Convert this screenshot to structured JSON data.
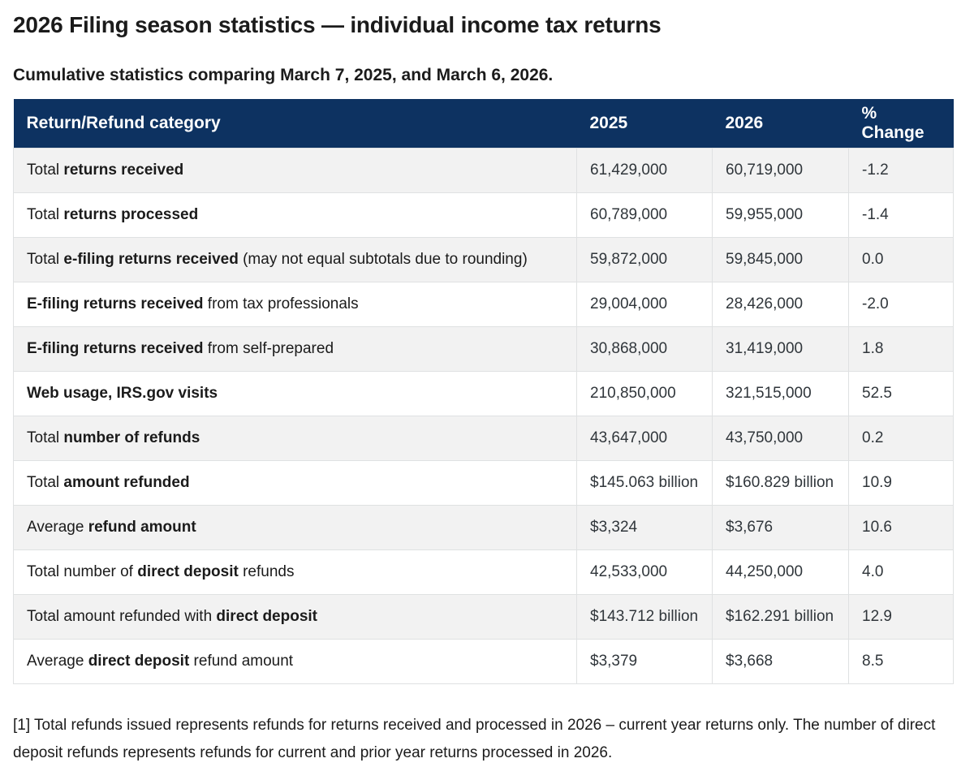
{
  "page": {
    "title": "2026 Filing season statistics — individual income tax returns",
    "subtitle": "Cumulative statistics comparing March 7, 2025, and March 6, 2026.",
    "footnote": "[1] Total refunds issued represents refunds for returns received and processed in 2026 – current year returns only. The number of direct deposit refunds represents refunds for current and prior year returns processed in 2026."
  },
  "colors": {
    "header_background": "#0d3261",
    "header_text": "#ffffff",
    "stripe_row": "#f2f2f2",
    "cell_border": "#dfe1e2",
    "body_text": "#1b1b1b"
  },
  "table": {
    "columns": [
      "Return/Refund category",
      "2025",
      "2026",
      "% Change"
    ],
    "rows": [
      {
        "category": [
          {
            "text": "Total ",
            "bold": false
          },
          {
            "text": "returns received",
            "bold": true
          }
        ],
        "y2025": "61,429,000",
        "y2026": "60,719,000",
        "change": "-1.2"
      },
      {
        "category": [
          {
            "text": "Total ",
            "bold": false
          },
          {
            "text": "returns processed",
            "bold": true
          }
        ],
        "y2025": "60,789,000",
        "y2026": "59,955,000",
        "change": "-1.4"
      },
      {
        "category": [
          {
            "text": "Total ",
            "bold": false
          },
          {
            "text": "e-filing returns received",
            "bold": true
          },
          {
            "text": " (may not equal subtotals due to rounding)",
            "bold": false
          }
        ],
        "y2025": "59,872,000",
        "y2026": "59,845,000",
        "change": "0.0"
      },
      {
        "category": [
          {
            "text": "E-filing returns received",
            "bold": true
          },
          {
            "text": " from tax professionals",
            "bold": false
          }
        ],
        "y2025": "29,004,000",
        "y2026": "28,426,000",
        "change": "-2.0"
      },
      {
        "category": [
          {
            "text": "E-filing returns received",
            "bold": true
          },
          {
            "text": " from self-prepared",
            "bold": false
          }
        ],
        "y2025": "30,868,000",
        "y2026": "31,419,000",
        "change": "1.8"
      },
      {
        "category": [
          {
            "text": "Web usage, IRS.gov visits",
            "bold": true
          }
        ],
        "y2025": "210,850,000",
        "y2026": "321,515,000",
        "change": "52.5"
      },
      {
        "category": [
          {
            "text": "Total ",
            "bold": false
          },
          {
            "text": "number of refunds",
            "bold": true
          }
        ],
        "y2025": "43,647,000",
        "y2026": "43,750,000",
        "change": "0.2"
      },
      {
        "category": [
          {
            "text": "Total ",
            "bold": false
          },
          {
            "text": "amount refunded",
            "bold": true
          }
        ],
        "y2025": "$145.063 billion",
        "y2026": "$160.829 billion",
        "change": "10.9"
      },
      {
        "category": [
          {
            "text": "Average ",
            "bold": false
          },
          {
            "text": "refund amount",
            "bold": true
          }
        ],
        "y2025": "$3,324",
        "y2026": "$3,676",
        "change": "10.6"
      },
      {
        "category": [
          {
            "text": "Total number of ",
            "bold": false
          },
          {
            "text": "direct deposit",
            "bold": true
          },
          {
            "text": " refunds",
            "bold": false
          }
        ],
        "y2025": "42,533,000",
        "y2026": "44,250,000",
        "change": "4.0"
      },
      {
        "category": [
          {
            "text": "Total amount refunded with ",
            "bold": false
          },
          {
            "text": "direct deposit",
            "bold": true
          }
        ],
        "y2025": "$143.712 billion",
        "y2026": "$162.291 billion",
        "change": "12.9"
      },
      {
        "category": [
          {
            "text": "Average ",
            "bold": false
          },
          {
            "text": "direct deposit",
            "bold": true
          },
          {
            "text": " refund amount",
            "bold": false
          }
        ],
        "y2025": "$3,379",
        "y2026": "$3,668",
        "change": "8.5"
      }
    ]
  }
}
